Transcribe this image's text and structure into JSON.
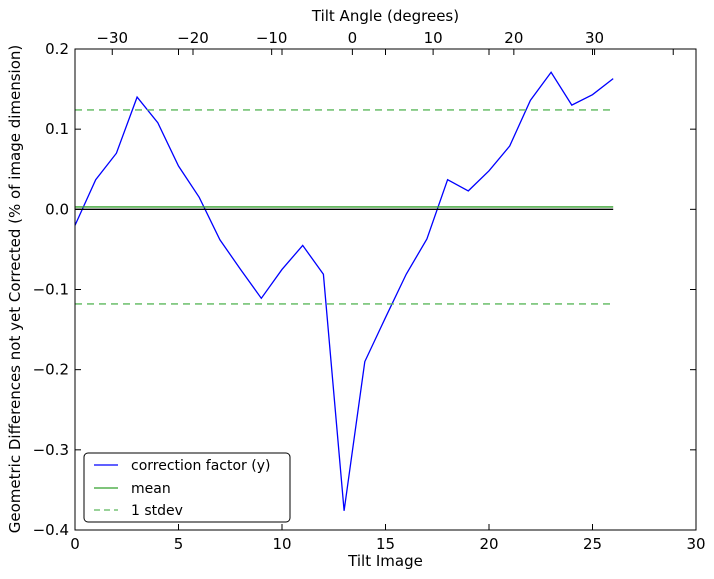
{
  "chart_data": {
    "type": "line",
    "xlabel": "Tilt Image",
    "ylabel": "Geometric Differences not yet Corrected (% of image dimension)",
    "top_xlabel": "Tilt Angle (degrees)",
    "xlim": [
      0,
      30
    ],
    "ylim": [
      -0.4,
      0.2
    ],
    "x_ticks": [
      0,
      5,
      10,
      15,
      20,
      25,
      30
    ],
    "x_tick_labels": [
      "0",
      "5",
      "10",
      "15",
      "20",
      "25",
      "30"
    ],
    "y_ticks": [
      0.2,
      0.1,
      0.0,
      -0.1,
      -0.2,
      -0.3,
      -0.4
    ],
    "y_tick_labels": [
      "0.2",
      "0.1",
      "0.0",
      "−0.1",
      "−0.2",
      "−0.3",
      "−0.4"
    ],
    "top_ticks_at_x": [
      1.8,
      5.7,
      9.5,
      13.4,
      17.3,
      21.2,
      25.1,
      28.9
    ],
    "top_tick_labels": [
      "−30",
      "−20",
      "−10",
      "0",
      "10",
      "20",
      "30",
      ""
    ],
    "grid": false,
    "legend_position": "lower-left",
    "series": [
      {
        "name": "correction factor (y)",
        "color": "#0000ff",
        "style": "solid",
        "x": [
          0,
          1,
          2,
          3,
          4,
          5,
          6,
          7,
          8,
          9,
          10,
          11,
          12,
          13,
          14,
          15,
          16,
          17,
          18,
          19,
          20,
          21,
          22,
          23,
          24,
          25,
          26
        ],
        "y": [
          -0.02,
          0.037,
          0.07,
          0.14,
          0.108,
          0.054,
          0.015,
          -0.038,
          -0.075,
          -0.111,
          -0.075,
          -0.045,
          -0.081,
          -0.376,
          -0.19,
          -0.135,
          -0.081,
          -0.037,
          0.037,
          0.023,
          0.048,
          0.079,
          0.136,
          0.171,
          0.13,
          0.143,
          0.163
        ]
      },
      {
        "name": "mean",
        "color": "#33a02c",
        "style": "solid",
        "x": [
          0,
          26
        ],
        "y": [
          0.003,
          0.003
        ]
      },
      {
        "name": "1 stdev",
        "color": "#5cb85c",
        "style": "dashed",
        "x": [
          0,
          26
        ],
        "y": [
          0.124,
          0.124
        ]
      },
      {
        "name": "",
        "color": "#5cb85c",
        "style": "dashed",
        "x": [
          0,
          26
        ],
        "y": [
          -0.118,
          -0.118
        ]
      },
      {
        "name": "",
        "color": "#000000",
        "style": "solid",
        "x": [
          0,
          26
        ],
        "y": [
          0,
          0
        ]
      }
    ]
  }
}
